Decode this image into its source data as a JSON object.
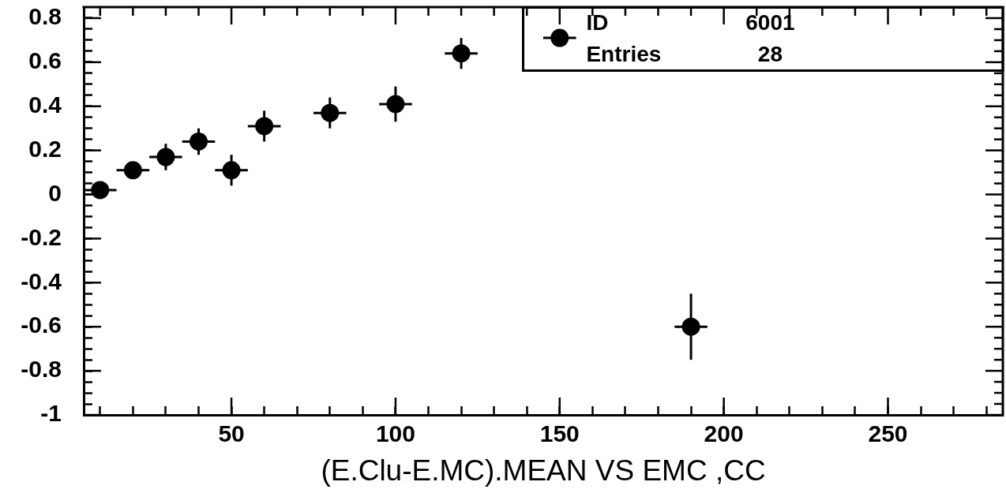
{
  "chart_data": {
    "type": "scatter",
    "xlabel": "(E.Clu-E.MC).MEAN VS EMC ,CC",
    "annotations": [
      "ID",
      "6001",
      "Entries",
      "28"
    ],
    "x": [
      10,
      20,
      30,
      40,
      50,
      60,
      80,
      100,
      120,
      150,
      190
    ],
    "values": [
      0.02,
      0.11,
      0.17,
      0.24,
      0.11,
      0.31,
      0.37,
      0.41,
      0.64,
      0.71,
      -0.6
    ],
    "errors": [
      null,
      null,
      0.06,
      0.06,
      0.07,
      0.07,
      0.07,
      0.08,
      0.07,
      null,
      0.15
    ],
    "xerrors": [
      5,
      5,
      5,
      5,
      5,
      5,
      5,
      5,
      5,
      5,
      5
    ],
    "color": "#000000",
    "marker": "circle",
    "grid": false,
    "xlim": [
      5,
      285
    ],
    "xticks": [
      {
        "value": 10,
        "label": null
      },
      {
        "value": 20,
        "label": null
      },
      {
        "value": 30,
        "label": null
      },
      {
        "value": 40,
        "label": null
      },
      50,
      {
        "value": 60,
        "label": null
      },
      {
        "value": 70,
        "label": null
      },
      {
        "value": 80,
        "label": null
      },
      {
        "value": 90,
        "label": null
      },
      100,
      {
        "value": 110,
        "label": null
      },
      {
        "value": 120,
        "label": null
      },
      {
        "value": 130,
        "label": null
      },
      {
        "value": 140,
        "label": null
      },
      150,
      {
        "value": 160,
        "label": null
      },
      {
        "value": 170,
        "label": null
      },
      {
        "value": 180,
        "label": null
      },
      {
        "value": 190,
        "label": null
      },
      200,
      {
        "value": 210,
        "label": null
      },
      {
        "value": 220,
        "label": null
      },
      {
        "value": 230,
        "label": null
      },
      {
        "value": 240,
        "label": null
      },
      250,
      {
        "value": 260,
        "label": null
      },
      {
        "value": 270,
        "label": null
      },
      {
        "value": 280,
        "label": null
      }
    ],
    "ylim": [
      -1,
      0.85
    ],
    "yticks": [
      -1,
      {
        "value": -0.95,
        "label": null
      },
      {
        "value": -0.9,
        "label": null
      },
      {
        "value": -0.85,
        "label": null
      },
      -0.8,
      {
        "value": -0.75,
        "label": null
      },
      {
        "value": -0.7,
        "label": null
      },
      {
        "value": -0.65,
        "label": null
      },
      -0.6,
      {
        "value": -0.55,
        "label": null
      },
      {
        "value": -0.5,
        "label": null
      },
      {
        "value": -0.45,
        "label": null
      },
      -0.4,
      {
        "value": -0.35,
        "label": null
      },
      {
        "value": -0.3,
        "label": null
      },
      {
        "value": -0.25,
        "label": null
      },
      -0.2,
      {
        "value": -0.15,
        "label": null
      },
      {
        "value": -0.1,
        "label": null
      },
      {
        "value": -0.05,
        "label": null
      },
      0,
      {
        "value": 0.05,
        "label": null
      },
      {
        "value": 0.1,
        "label": null
      },
      {
        "value": 0.15,
        "label": null
      },
      0.2,
      {
        "value": 0.25,
        "label": null
      },
      {
        "value": 0.3,
        "label": null
      },
      {
        "value": 0.35,
        "label": null
      },
      0.4,
      {
        "value": 0.45,
        "label": null
      },
      {
        "value": 0.5,
        "label": null
      },
      {
        "value": 0.55,
        "label": null
      },
      0.6,
      {
        "value": 0.65,
        "label": null
      },
      {
        "value": 0.7,
        "label": null
      },
      {
        "value": 0.75,
        "label": null
      },
      0.8
    ]
  }
}
